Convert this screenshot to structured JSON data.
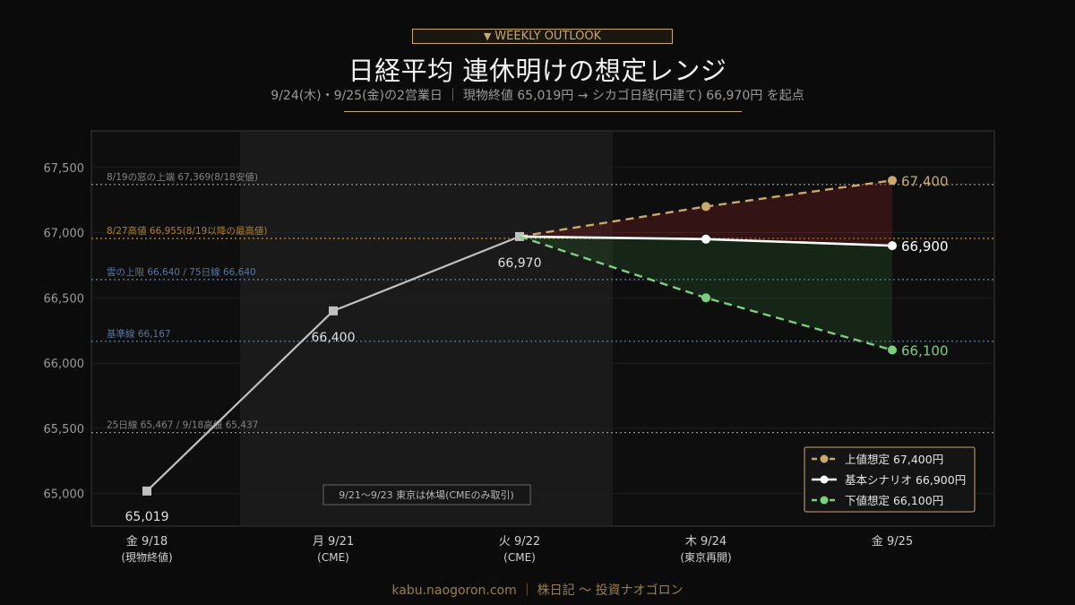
{
  "header": {
    "badge": "WEEKLY OUTLOOK",
    "badge_icon": "triangle-down-icon",
    "title": "日経平均 連休明けの想定レンジ",
    "subtitle": "9/24(木)・9/25(金)の2営業日 ｜ 現物終値 65,019円 → シカゴ日経(円建て) 66,970円 を起点"
  },
  "footer": "kabu.naogoron.com ｜ 株日記 〜 投資ナオゴロン",
  "colors": {
    "background": "#0b0b0b",
    "upper": "#c8a96e",
    "base": "#ffffff",
    "lower": "#7ccf7e",
    "history": "#c0c0c0",
    "gold_line": "#b8862f",
    "blue_line": "#5b7da3",
    "grey_line": "#8a8a8a"
  },
  "chart_data": {
    "type": "line",
    "categories": [
      [
        "金 9/18",
        "(現物終値)"
      ],
      [
        "月 9/21",
        "(CME)"
      ],
      [
        "火 9/22",
        "(CME)"
      ],
      [
        "木 9/24",
        "(東京再開)"
      ],
      [
        "金 9/25",
        ""
      ]
    ],
    "ylim": [
      64750,
      67780
    ],
    "yticks": [
      65000,
      65500,
      66000,
      66500,
      67000,
      67500
    ],
    "grid": true,
    "history": {
      "values": [
        65019,
        66400,
        66970
      ],
      "labels": [
        "65,019",
        "66,400",
        "66,970"
      ]
    },
    "series": [
      {
        "key": "upper",
        "name": "上値想定 67,400円",
        "x": [
          2,
          3,
          4
        ],
        "values": [
          66970,
          67200,
          67400
        ],
        "end_label": "67,400"
      },
      {
        "key": "base",
        "name": "基本シナリオ 66,900円",
        "x": [
          2,
          3,
          4
        ],
        "values": [
          66970,
          66950,
          66900
        ],
        "end_label": "66,900"
      },
      {
        "key": "lower",
        "name": "下値想定 66,100円",
        "x": [
          2,
          3,
          4
        ],
        "values": [
          66970,
          66500,
          66100
        ],
        "end_label": "66,100"
      }
    ],
    "reference_lines": [
      {
        "value": 67369,
        "label": "8/19の窓の上端 67,369(8/18安値)",
        "style": "grey"
      },
      {
        "value": 66955,
        "label": "8/27高値 66,955(8/19以降の最高値)",
        "style": "gold"
      },
      {
        "value": 66640,
        "label": "雲の上限 66,640 / 75日線 66,640",
        "style": "blue"
      },
      {
        "value": 66167,
        "label": "基準線 66,167",
        "style": "blue"
      },
      {
        "value": 65467,
        "label": "25日線 65,467 / 9/18高値 65,437",
        "style": "grey"
      }
    ],
    "holiday_annotation": "9/21〜9/23 東京は休場(CMEのみ取引)",
    "legend_position": "bottom-right"
  }
}
